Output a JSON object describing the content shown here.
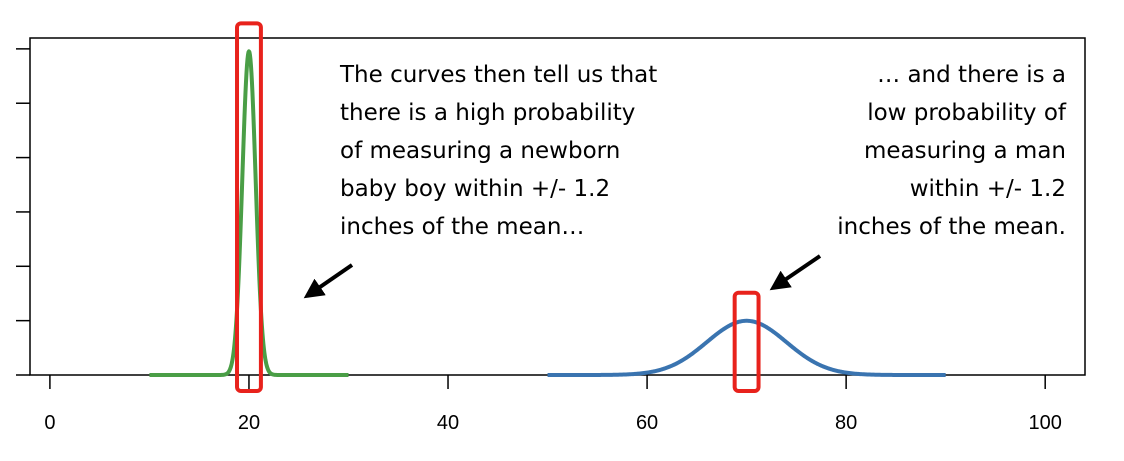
{
  "chart_data": {
    "type": "line",
    "title": "",
    "xlabel": "",
    "ylabel": "",
    "xlim": [
      -2,
      104
    ],
    "ylim": [
      0,
      0.62
    ],
    "x_ticks": [
      0,
      20,
      40,
      60,
      80,
      100
    ],
    "x_tick_labels": [
      "0",
      "20",
      "40",
      "60",
      "80",
      "100"
    ],
    "y_ticks": [
      0,
      0.1,
      0.2,
      0.3,
      0.4,
      0.5,
      0.6
    ],
    "grid": false,
    "legend": "none",
    "series": [
      {
        "mean": 20,
        "sd": 0.67,
        "x_range": [
          10,
          30
        ],
        "color": "#4a9e46"
      },
      {
        "mean": 70,
        "sd": 4,
        "x_range": [
          50,
          90
        ],
        "color": "#3a74b0"
      }
    ],
    "highlight_boxes": [
      {
        "x_range": [
          18.8,
          21.2
        ],
        "color": "#e8221c"
      },
      {
        "x_range": [
          68.8,
          71.2
        ],
        "color": "#e8221c"
      }
    ],
    "annotations": [
      {
        "lines": [
          "The curves then tell us that",
          "there is a high probability",
          "of measuring a newborn",
          "baby boy within +/- 1.2",
          "inches of the mean…"
        ],
        "align": "left"
      },
      {
        "lines": [
          "… and  there is a",
          "low probability of",
          "measuring a man",
          "within +/- 1.2",
          "inches of the mean."
        ],
        "align": "right"
      }
    ]
  }
}
